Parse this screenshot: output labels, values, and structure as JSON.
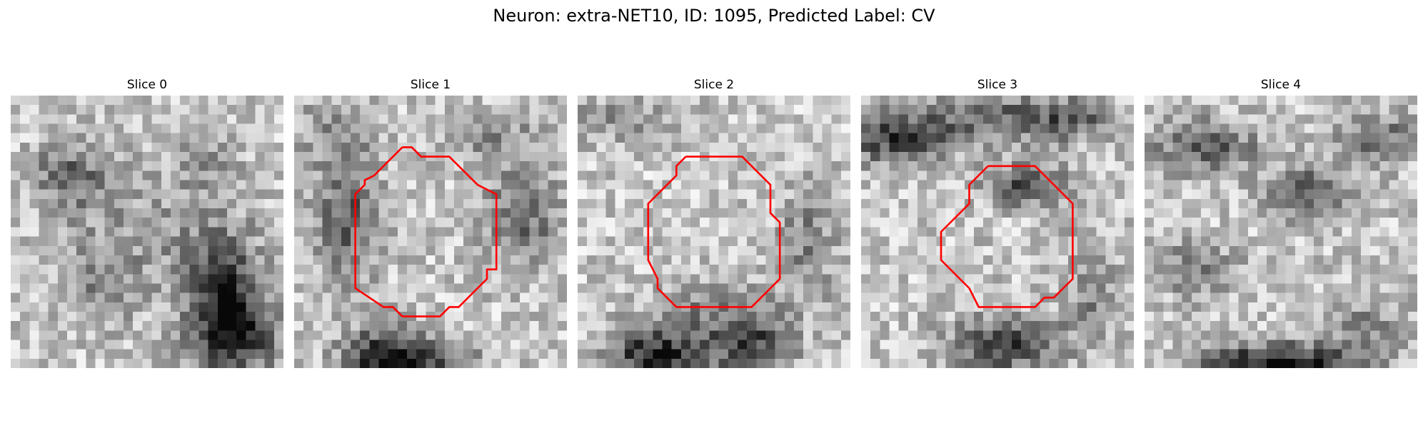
{
  "figure": {
    "title": "Neuron: extra-NET10, ID: 1095, Predicted Label: CV"
  },
  "panels": [
    {
      "title": "Slice 0"
    },
    {
      "title": "Slice 1"
    },
    {
      "title": "Slice 2"
    },
    {
      "title": "Slice 3"
    },
    {
      "title": "Slice 4"
    }
  ],
  "colors": {
    "contour": "#ff0000",
    "colormap": "grayscale",
    "background": "#ffffff"
  }
}
